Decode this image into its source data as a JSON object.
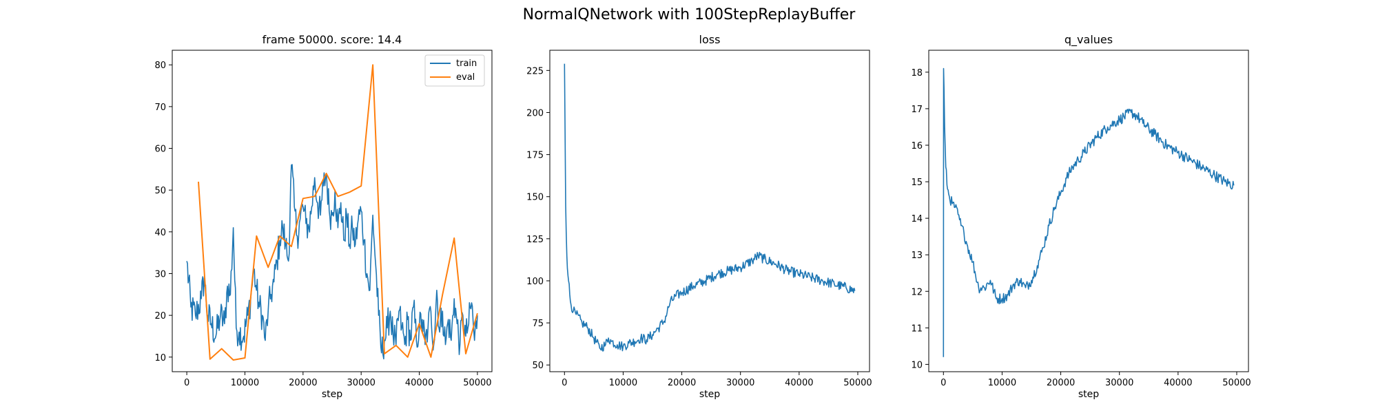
{
  "figure": {
    "title": "NormalQNetwork with 100StepReplayBuffer",
    "colors": {
      "train": "#1f77b4",
      "eval": "#ff7f0e",
      "loss": "#1f77b4",
      "q_values": "#1f77b4"
    }
  },
  "chart_data": [
    {
      "type": "line",
      "title": "frame 50000. score: 14.4",
      "xlabel": "step",
      "ylabel": "",
      "xlim": [
        -2500,
        52500
      ],
      "ylim": [
        6.5,
        83.5
      ],
      "xticks": [
        0,
        10000,
        20000,
        30000,
        40000,
        50000
      ],
      "yticks": [
        10,
        20,
        30,
        40,
        50,
        60,
        70,
        80
      ],
      "legend": {
        "position": "top-right",
        "entries": [
          "train",
          "eval"
        ]
      },
      "series": [
        {
          "name": "train",
          "color": "#1f77b4",
          "noise": 4,
          "points": [
            [
              0,
              33
            ],
            [
              700,
              22
            ],
            [
              1500,
              20
            ],
            [
              2500,
              24
            ],
            [
              3000,
              29
            ],
            [
              3600,
              20
            ],
            [
              4200,
              18
            ],
            [
              5000,
              15
            ],
            [
              5800,
              20
            ],
            [
              6500,
              18
            ],
            [
              7000,
              27
            ],
            [
              7500,
              25
            ],
            [
              8000,
              41
            ],
            [
              8500,
              17
            ],
            [
              9000,
              16
            ],
            [
              9800,
              15
            ],
            [
              10500,
              20
            ],
            [
              11000,
              24
            ],
            [
              11500,
              31
            ],
            [
              12000,
              26
            ],
            [
              12500,
              22
            ],
            [
              13000,
              20
            ],
            [
              13500,
              14
            ],
            [
              14000,
              21
            ],
            [
              14500,
              25
            ],
            [
              15000,
              28
            ],
            [
              15500,
              33
            ],
            [
              16000,
              38
            ],
            [
              16500,
              41
            ],
            [
              17000,
              37
            ],
            [
              17500,
              33
            ],
            [
              18000,
              56
            ],
            [
              18500,
              46
            ],
            [
              19000,
              39
            ],
            [
              19500,
              43
            ],
            [
              20000,
              46
            ],
            [
              20500,
              42
            ],
            [
              21000,
              41
            ],
            [
              21500,
              46
            ],
            [
              22000,
              53
            ],
            [
              22500,
              47
            ],
            [
              23000,
              44
            ],
            [
              23500,
              51
            ],
            [
              24000,
              54
            ],
            [
              24500,
              45
            ],
            [
              25000,
              44
            ],
            [
              25500,
              50
            ],
            [
              26000,
              41
            ],
            [
              26500,
              47
            ],
            [
              27000,
              38
            ],
            [
              27500,
              44
            ],
            [
              28000,
              37
            ],
            [
              28500,
              41
            ],
            [
              29000,
              37
            ],
            [
              29500,
              43
            ],
            [
              30000,
              45
            ],
            [
              30500,
              38
            ],
            [
              31000,
              30
            ],
            [
              31500,
              26
            ],
            [
              32000,
              44
            ],
            [
              32500,
              32
            ],
            [
              33000,
              20
            ],
            [
              33500,
              11
            ],
            [
              34000,
              14
            ],
            [
              34500,
              17
            ],
            [
              35000,
              21
            ],
            [
              35500,
              15
            ],
            [
              36000,
              13
            ],
            [
              36500,
              21
            ],
            [
              37000,
              17
            ],
            [
              37500,
              13
            ],
            [
              38000,
              19
            ],
            [
              38500,
              14
            ],
            [
              39000,
              22
            ],
            [
              39500,
              14
            ],
            [
              40000,
              17
            ],
            [
              40500,
              19
            ],
            [
              41000,
              13
            ],
            [
              41500,
              17
            ],
            [
              42000,
              21
            ],
            [
              42500,
              13
            ],
            [
              43000,
              26
            ],
            [
              43500,
              16
            ],
            [
              44000,
              21
            ],
            [
              44500,
              13
            ],
            [
              45000,
              19
            ],
            [
              45500,
              14
            ],
            [
              46000,
              24
            ],
            [
              46500,
              18
            ],
            [
              47000,
              13
            ],
            [
              47500,
              20
            ],
            [
              48000,
              15
            ],
            [
              48500,
              18
            ],
            [
              49000,
              23
            ],
            [
              49500,
              14
            ],
            [
              50000,
              20
            ]
          ]
        },
        {
          "name": "eval",
          "color": "#ff7f0e",
          "noise": 0,
          "points": [
            [
              2000,
              52
            ],
            [
              4000,
              9.5
            ],
            [
              6000,
              12
            ],
            [
              8000,
              9.3
            ],
            [
              10000,
              9.8
            ],
            [
              12000,
              39
            ],
            [
              14000,
              31.5
            ],
            [
              16000,
              39
            ],
            [
              18000,
              36.5
            ],
            [
              20000,
              48
            ],
            [
              22000,
              48.5
            ],
            [
              24000,
              54
            ],
            [
              26000,
              48.5
            ],
            [
              28000,
              49.5
            ],
            [
              30000,
              51
            ],
            [
              32000,
              80
            ],
            [
              34000,
              10.8
            ],
            [
              36000,
              12.8
            ],
            [
              38000,
              10
            ],
            [
              40000,
              18
            ],
            [
              42000,
              10
            ],
            [
              44000,
              25
            ],
            [
              46000,
              38.5
            ],
            [
              48000,
              10.8
            ],
            [
              50000,
              20.5
            ]
          ]
        }
      ]
    },
    {
      "type": "line",
      "title": "loss",
      "xlabel": "step",
      "ylabel": "",
      "xlim": [
        -2500,
        52000
      ],
      "ylim": [
        46,
        237
      ],
      "xticks": [
        0,
        10000,
        20000,
        30000,
        40000,
        50000
      ],
      "yticks": [
        50,
        75,
        100,
        125,
        150,
        175,
        200,
        225
      ],
      "series": [
        {
          "name": "",
          "color": "#1f77b4",
          "noise": 3,
          "points": [
            [
              0,
              229
            ],
            [
              100,
              190
            ],
            [
              200,
              145
            ],
            [
              400,
              115
            ],
            [
              700,
              100
            ],
            [
              1000,
              88
            ],
            [
              1500,
              82
            ],
            [
              2000,
              80
            ],
            [
              3000,
              75
            ],
            [
              4000,
              72
            ],
            [
              5000,
              66
            ],
            [
              6000,
              60
            ],
            [
              7000,
              62
            ],
            [
              7500,
              66
            ],
            [
              8000,
              64
            ],
            [
              9000,
              62
            ],
            [
              10000,
              61
            ],
            [
              11000,
              63
            ],
            [
              12000,
              64
            ],
            [
              13000,
              66
            ],
            [
              14000,
              65
            ],
            [
              15000,
              68
            ],
            [
              16000,
              72
            ],
            [
              17000,
              76
            ],
            [
              18000,
              87
            ],
            [
              19000,
              91
            ],
            [
              20000,
              93
            ],
            [
              22000,
              97
            ],
            [
              24000,
              100
            ],
            [
              26000,
              104
            ],
            [
              28000,
              106
            ],
            [
              30000,
              108
            ],
            [
              32000,
              112
            ],
            [
              33000,
              115
            ],
            [
              34000,
              113
            ],
            [
              36000,
              110
            ],
            [
              38000,
              106
            ],
            [
              40000,
              104
            ],
            [
              42000,
              102
            ],
            [
              44000,
              100
            ],
            [
              46000,
              98
            ],
            [
              48000,
              96
            ],
            [
              49500,
              94
            ]
          ]
        }
      ]
    },
    {
      "type": "line",
      "title": "q_values",
      "xlabel": "step",
      "ylabel": "",
      "xlim": [
        -2500,
        52000
      ],
      "ylim": [
        9.8,
        18.6
      ],
      "xticks": [
        0,
        10000,
        20000,
        30000,
        40000,
        50000
      ],
      "yticks": [
        10,
        11,
        12,
        13,
        14,
        15,
        16,
        17,
        18
      ],
      "series": [
        {
          "name": "",
          "color": "#1f77b4",
          "noise": 0.15,
          "points": [
            [
              0,
              10.2
            ],
            [
              30,
              18.1
            ],
            [
              100,
              17.6
            ],
            [
              200,
              16.5
            ],
            [
              400,
              15.4
            ],
            [
              700,
              14.8
            ],
            [
              1000,
              14.6
            ],
            [
              1500,
              14.4
            ],
            [
              2000,
              14.3
            ],
            [
              2500,
              14.1
            ],
            [
              3000,
              13.8
            ],
            [
              3500,
              13.6
            ],
            [
              4000,
              13.3
            ],
            [
              5000,
              12.8
            ],
            [
              6000,
              12.1
            ],
            [
              7000,
              12.1
            ],
            [
              8000,
              12.3
            ],
            [
              9000,
              11.8
            ],
            [
              10000,
              11.8
            ],
            [
              11000,
              11.9
            ],
            [
              12000,
              12.2
            ],
            [
              13000,
              12.3
            ],
            [
              14000,
              12.1
            ],
            [
              15000,
              12.3
            ],
            [
              16000,
              12.7
            ],
            [
              17000,
              13.2
            ],
            [
              18000,
              13.8
            ],
            [
              19000,
              14.3
            ],
            [
              20000,
              14.7
            ],
            [
              21000,
              15.1
            ],
            [
              22000,
              15.4
            ],
            [
              23000,
              15.6
            ],
            [
              24000,
              15.8
            ],
            [
              26000,
              16.2
            ],
            [
              28000,
              16.5
            ],
            [
              30000,
              16.7
            ],
            [
              32000,
              16.9
            ],
            [
              33000,
              16.8
            ],
            [
              34000,
              16.6
            ],
            [
              36000,
              16.3
            ],
            [
              38000,
              16.0
            ],
            [
              40000,
              15.8
            ],
            [
              42000,
              15.6
            ],
            [
              44000,
              15.4
            ],
            [
              46000,
              15.2
            ],
            [
              48000,
              15.0
            ],
            [
              49500,
              14.9
            ]
          ]
        }
      ]
    }
  ]
}
